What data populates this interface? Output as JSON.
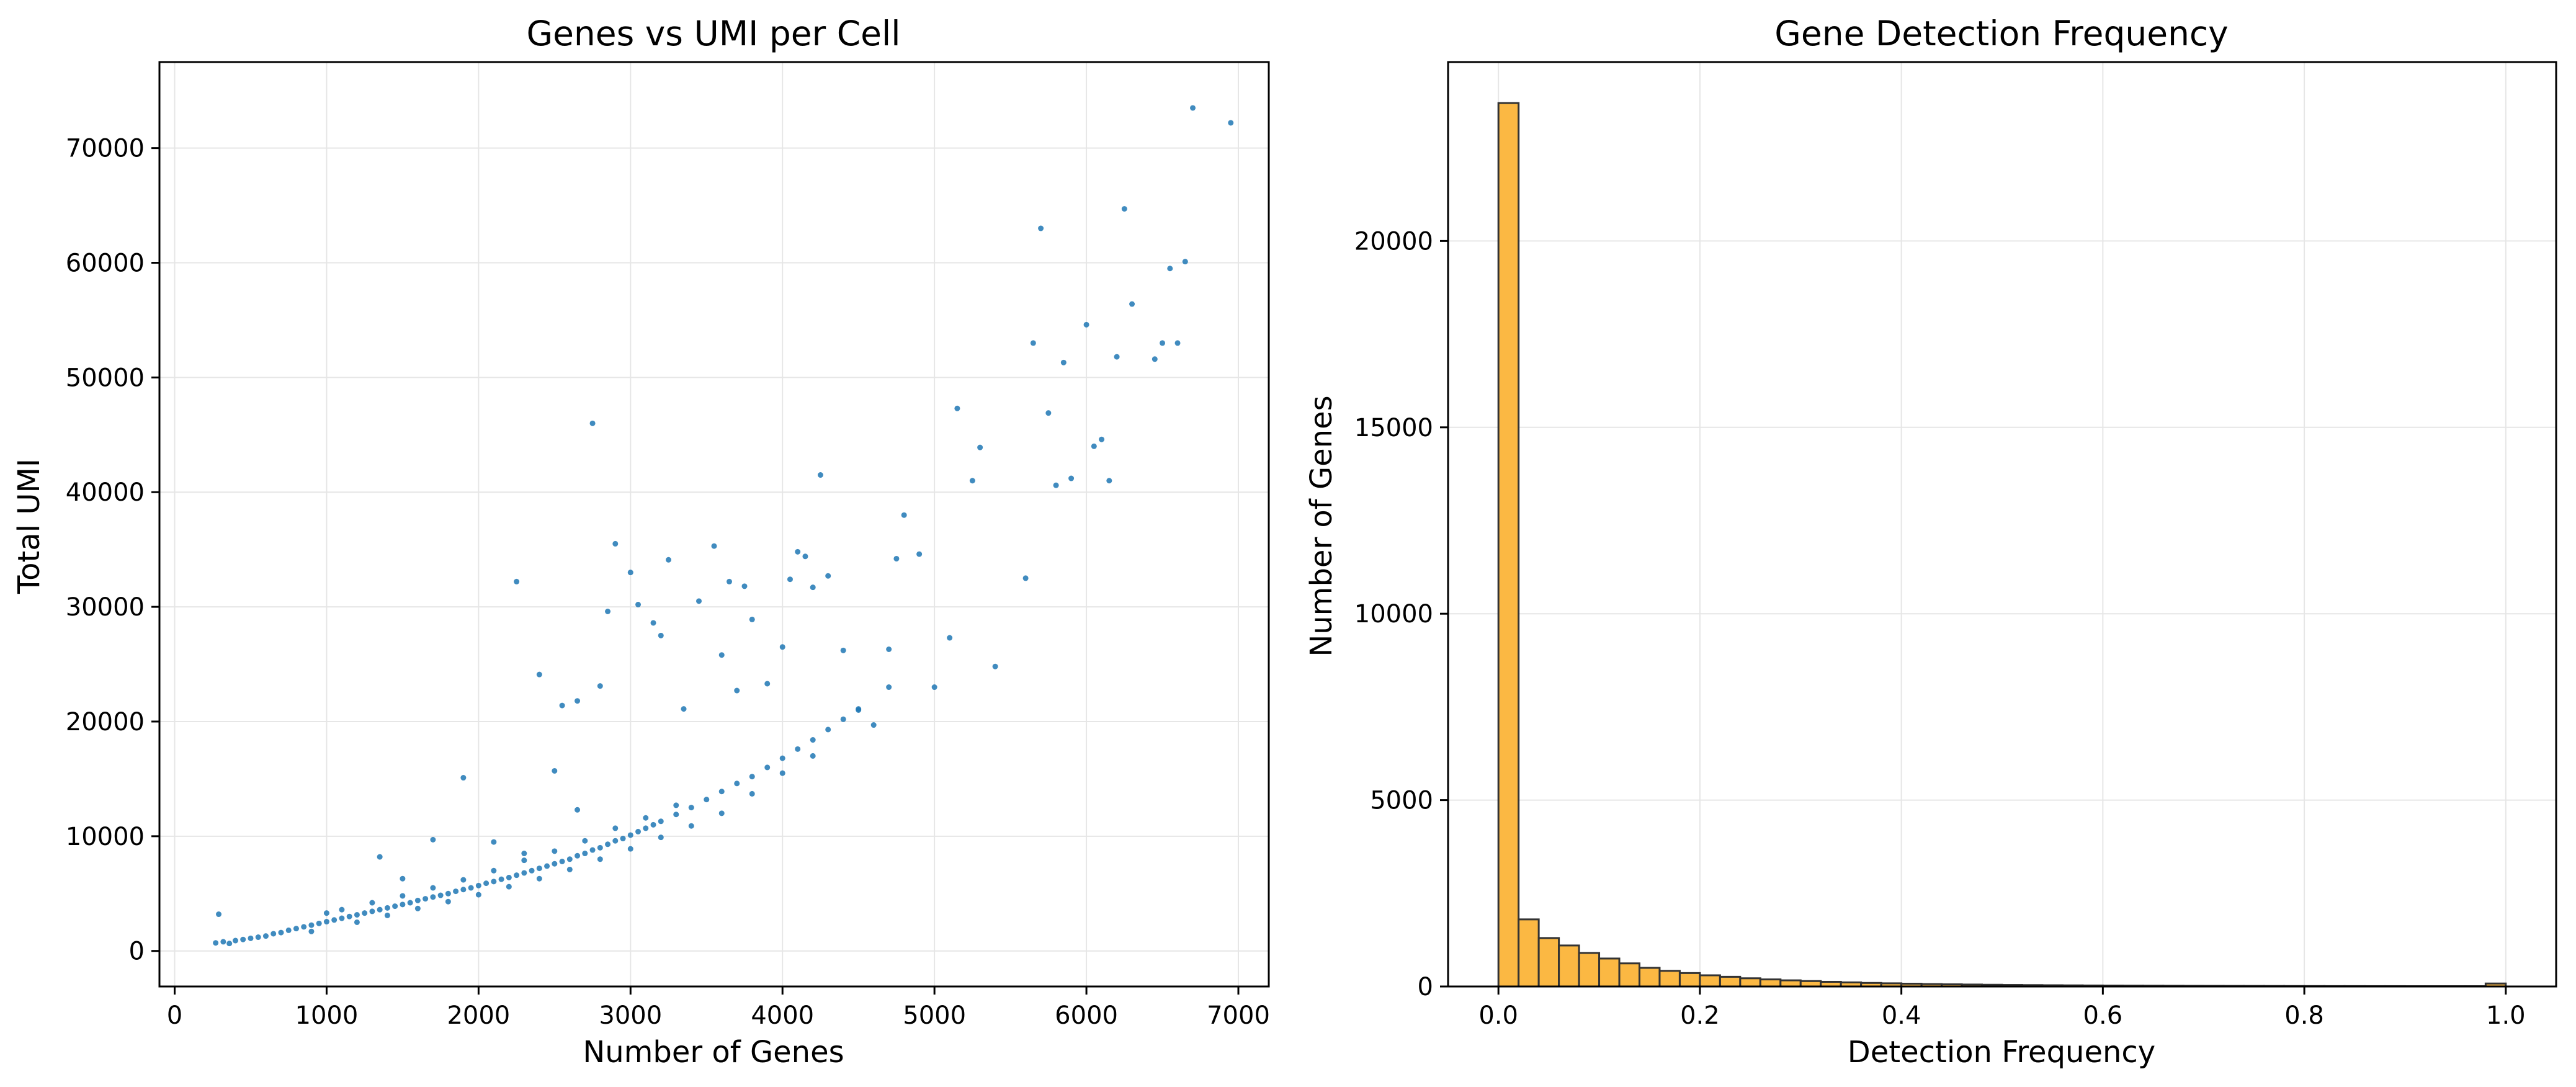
{
  "chart_data": [
    {
      "type": "scatter",
      "title": "Genes vs UMI per Cell",
      "xlabel": "Number of Genes",
      "ylabel": "Total UMI",
      "xlim": [
        -100,
        7200
      ],
      "ylim": [
        -3100,
        77500
      ],
      "xticks": [
        0,
        1000,
        2000,
        3000,
        4000,
        5000,
        6000,
        7000
      ],
      "xtick_labels": [
        "0",
        "1000",
        "2000",
        "3000",
        "4000",
        "5000",
        "6000",
        "7000"
      ],
      "yticks": [
        0,
        10000,
        20000,
        30000,
        40000,
        50000,
        60000,
        70000
      ],
      "ytick_labels": [
        "0",
        "10000",
        "20000",
        "30000",
        "40000",
        "50000",
        "60000",
        "70000"
      ],
      "grid": true,
      "color": "#1f77b4",
      "series": [
        {
          "points": [
            [
              270,
              700
            ],
            [
              290,
              3200
            ],
            [
              320,
              800
            ],
            [
              360,
              650
            ],
            [
              400,
              900
            ],
            [
              450,
              1000
            ],
            [
              500,
              1100
            ],
            [
              550,
              1200
            ],
            [
              600,
              1300
            ],
            [
              650,
              1500
            ],
            [
              700,
              1600
            ],
            [
              750,
              1800
            ],
            [
              800,
              1950
            ],
            [
              850,
              2100
            ],
            [
              900,
              2250
            ],
            [
              950,
              2400
            ],
            [
              1000,
              2550
            ],
            [
              1050,
              2700
            ],
            [
              1100,
              2850
            ],
            [
              1150,
              3000
            ],
            [
              1200,
              3150
            ],
            [
              1250,
              3300
            ],
            [
              1300,
              3450
            ],
            [
              1350,
              3600
            ],
            [
              1400,
              3750
            ],
            [
              1450,
              3900
            ],
            [
              1500,
              4050
            ],
            [
              1550,
              4200
            ],
            [
              1600,
              4400
            ],
            [
              1650,
              4550
            ],
            [
              1700,
              4700
            ],
            [
              1750,
              4850
            ],
            [
              1800,
              5000
            ],
            [
              1850,
              5200
            ],
            [
              1900,
              5350
            ],
            [
              1950,
              5500
            ],
            [
              2000,
              5700
            ],
            [
              2050,
              5900
            ],
            [
              2100,
              6050
            ],
            [
              2150,
              6250
            ],
            [
              2200,
              6400
            ],
            [
              2250,
              6600
            ],
            [
              2300,
              6800
            ],
            [
              2350,
              7000
            ],
            [
              2400,
              7200
            ],
            [
              2450,
              7400
            ],
            [
              2500,
              7600
            ],
            [
              2550,
              7800
            ],
            [
              2600,
              8000
            ],
            [
              2650,
              8300
            ],
            [
              2700,
              8500
            ],
            [
              2750,
              8800
            ],
            [
              2800,
              9000
            ],
            [
              2850,
              9300
            ],
            [
              2900,
              9600
            ],
            [
              2950,
              9800
            ],
            [
              3000,
              10100
            ],
            [
              3050,
              10400
            ],
            [
              3100,
              10700
            ],
            [
              3150,
              11000
            ],
            [
              3200,
              11300
            ],
            [
              3300,
              11900
            ],
            [
              3400,
              12500
            ],
            [
              3500,
              13200
            ],
            [
              3600,
              13900
            ],
            [
              3700,
              14600
            ],
            [
              3800,
              15200
            ],
            [
              3900,
              16000
            ],
            [
              4000,
              16800
            ],
            [
              4100,
              17600
            ],
            [
              4200,
              18400
            ],
            [
              4300,
              19300
            ],
            [
              4400,
              20200
            ],
            [
              4500,
              21100
            ],
            [
              4700,
              23000
            ],
            [
              900,
              1700
            ],
            [
              1000,
              3300
            ],
            [
              1100,
              3600
            ],
            [
              1200,
              2500
            ],
            [
              1300,
              4200
            ],
            [
              1400,
              3100
            ],
            [
              1500,
              4800
            ],
            [
              1600,
              3700
            ],
            [
              1700,
              5500
            ],
            [
              1800,
              4300
            ],
            [
              1900,
              6200
            ],
            [
              2000,
              4900
            ],
            [
              2100,
              7000
            ],
            [
              2200,
              5600
            ],
            [
              2300,
              7900
            ],
            [
              2400,
              6300
            ],
            [
              2500,
              8700
            ],
            [
              2600,
              7100
            ],
            [
              2700,
              9600
            ],
            [
              2800,
              8000
            ],
            [
              2900,
              10700
            ],
            [
              3000,
              8900
            ],
            [
              3100,
              11600
            ],
            [
              3200,
              9900
            ],
            [
              3300,
              12700
            ],
            [
              3400,
              10900
            ],
            [
              3600,
              12000
            ],
            [
              3800,
              13700
            ],
            [
              4000,
              15500
            ],
            [
              4200,
              17000
            ],
            [
              1350,
              8200
            ],
            [
              1500,
              6300
            ],
            [
              1700,
              9700
            ],
            [
              1900,
              15100
            ],
            [
              2100,
              9500
            ],
            [
              2300,
              8500
            ],
            [
              2500,
              15700
            ],
            [
              2650,
              12300
            ],
            [
              2750,
              46000
            ],
            [
              2250,
              32200
            ],
            [
              2400,
              24100
            ],
            [
              2550,
              21400
            ],
            [
              2650,
              21800
            ],
            [
              2800,
              23100
            ],
            [
              2850,
              29600
            ],
            [
              2900,
              35500
            ],
            [
              3000,
              33000
            ],
            [
              3050,
              30200
            ],
            [
              3150,
              28600
            ],
            [
              3200,
              27500
            ],
            [
              3250,
              34100
            ],
            [
              3350,
              21100
            ],
            [
              3450,
              30500
            ],
            [
              3550,
              35300
            ],
            [
              3600,
              25800
            ],
            [
              3650,
              32200
            ],
            [
              3700,
              22700
            ],
            [
              3750,
              31800
            ],
            [
              3800,
              28900
            ],
            [
              3900,
              23300
            ],
            [
              4000,
              26500
            ],
            [
              4050,
              32400
            ],
            [
              4100,
              34800
            ],
            [
              4150,
              34400
            ],
            [
              4200,
              31700
            ],
            [
              4250,
              41500
            ],
            [
              4300,
              32700
            ],
            [
              4400,
              26200
            ],
            [
              4500,
              21000
            ],
            [
              4600,
              19700
            ],
            [
              4700,
              26300
            ],
            [
              4750,
              34200
            ],
            [
              4800,
              38000
            ],
            [
              4900,
              34600
            ],
            [
              5000,
              23000
            ],
            [
              5100,
              27300
            ],
            [
              5150,
              47300
            ],
            [
              5250,
              41000
            ],
            [
              5300,
              43900
            ],
            [
              5400,
              24800
            ],
            [
              5600,
              32500
            ],
            [
              5650,
              53000
            ],
            [
              5700,
              63000
            ],
            [
              5750,
              46900
            ],
            [
              5800,
              40600
            ],
            [
              5850,
              51300
            ],
            [
              5900,
              41200
            ],
            [
              6000,
              54600
            ],
            [
              6050,
              44000
            ],
            [
              6100,
              44600
            ],
            [
              6150,
              41000
            ],
            [
              6200,
              51800
            ],
            [
              6250,
              64700
            ],
            [
              6300,
              56400
            ],
            [
              6450,
              51600
            ],
            [
              6500,
              53000
            ],
            [
              6550,
              59500
            ],
            [
              6600,
              53000
            ],
            [
              6650,
              60100
            ],
            [
              6700,
              73500
            ],
            [
              6950,
              72200
            ]
          ]
        }
      ]
    },
    {
      "type": "bar",
      "title": "Gene Detection Frequency",
      "xlabel": "Detection Frequency",
      "ylabel": "Number of Genes",
      "xlim": [
        -0.05,
        1.05
      ],
      "ylim": [
        0,
        24800
      ],
      "xticks": [
        0.0,
        0.2,
        0.4,
        0.6,
        0.8,
        1.0
      ],
      "xtick_labels": [
        "0.0",
        "0.2",
        "0.4",
        "0.6",
        "0.8",
        "1.0"
      ],
      "yticks": [
        0,
        5000,
        10000,
        15000,
        20000
      ],
      "ytick_labels": [
        "0",
        "5000",
        "10000",
        "15000",
        "20000"
      ],
      "grid": true,
      "color": "#fbb843",
      "edgecolor": "#333333",
      "bin_width": 0.02,
      "bin_starts": [
        0.0,
        0.02,
        0.04,
        0.06,
        0.08,
        0.1,
        0.12,
        0.14,
        0.16,
        0.18,
        0.2,
        0.22,
        0.24,
        0.26,
        0.28,
        0.3,
        0.32,
        0.34,
        0.36,
        0.38,
        0.4,
        0.42,
        0.44,
        0.46,
        0.48,
        0.5,
        0.52,
        0.54,
        0.56,
        0.58,
        0.6,
        0.62,
        0.64,
        0.66,
        0.68,
        0.7,
        0.72,
        0.74,
        0.76,
        0.78,
        0.8,
        0.82,
        0.84,
        0.86,
        0.88,
        0.9,
        0.92,
        0.94,
        0.96,
        0.98
      ],
      "values": [
        23700,
        1800,
        1300,
        1100,
        900,
        750,
        620,
        500,
        420,
        360,
        300,
        260,
        220,
        190,
        165,
        145,
        125,
        110,
        95,
        85,
        75,
        65,
        58,
        52,
        46,
        41,
        37,
        33,
        30,
        27,
        25,
        23,
        21,
        19,
        17,
        16,
        15,
        14,
        13,
        12,
        11,
        10,
        10,
        9,
        9,
        8,
        8,
        8,
        8,
        80
      ]
    }
  ]
}
